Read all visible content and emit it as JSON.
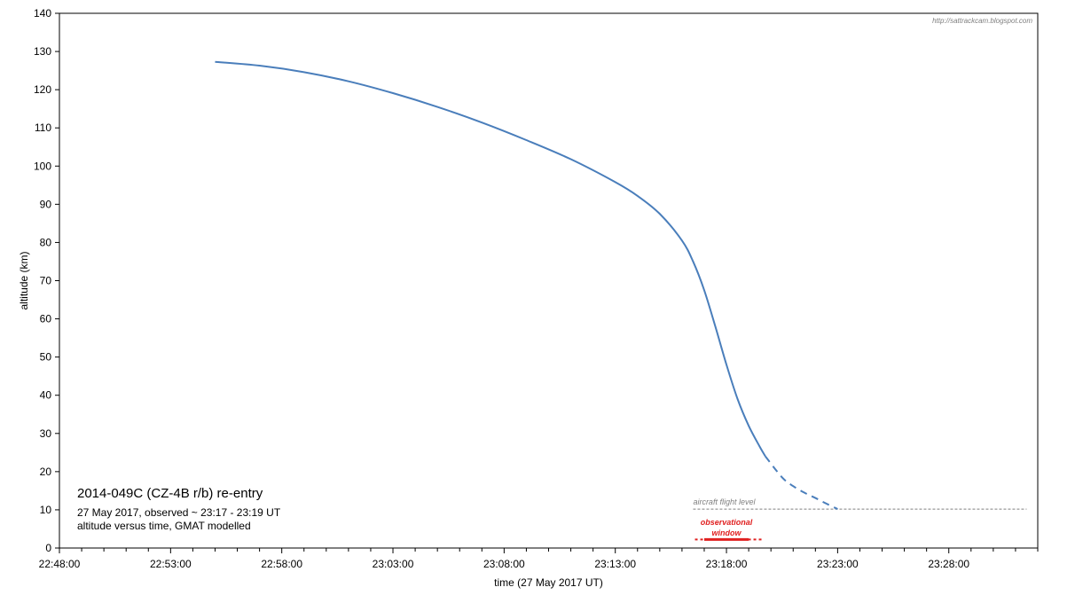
{
  "chart_data": {
    "type": "line",
    "title": "2014-049C  (CZ-4B r/b) re-entry",
    "subtitle_lines": [
      "27 May 2017,  observed ~ 23:17 - 23:19 UT",
      "altitude versus time, GMAT modelled"
    ],
    "xlabel": "time (27 May 2017 UT)",
    "ylabel": "altitude (km)",
    "watermark": "http://sattrackcam.blogspot.com",
    "xlim": [
      "22:48:00",
      "23:32:00"
    ],
    "ylim": [
      0,
      140
    ],
    "x_ticks": [
      "22:48:00",
      "22:53:00",
      "22:58:00",
      "23:03:00",
      "23:08:00",
      "23:13:00",
      "23:18:00",
      "23:23:00",
      "23:28:00"
    ],
    "y_ticks": [
      0,
      10,
      20,
      30,
      40,
      50,
      60,
      70,
      80,
      90,
      100,
      110,
      120,
      130,
      140
    ],
    "grid": false,
    "series": [
      {
        "style": "solid",
        "color": "#4a7ebb",
        "x": [
          "22:55:00",
          "22:57:00",
          "22:59:00",
          "23:01:00",
          "23:03:00",
          "23:05:00",
          "23:07:00",
          "23:09:00",
          "23:11:00",
          "23:13:00",
          "23:14:00",
          "23:15:00",
          "23:16:00",
          "23:16:30",
          "23:17:00",
          "23:17:30",
          "23:18:00",
          "23:18:30",
          "23:19:00",
          "23:19:30",
          "23:19:45"
        ],
        "y": [
          127.3,
          126.3,
          124.6,
          122.2,
          119.1,
          115.5,
          111.4,
          106.8,
          101.8,
          95.8,
          92.2,
          87.5,
          80.5,
          75.0,
          67.5,
          58.0,
          48.0,
          39.0,
          32.0,
          26.5,
          24.0
        ]
      },
      {
        "style": "dashed",
        "color": "#4a7ebb",
        "x": [
          "23:19:45",
          "23:20:30",
          "23:21:00",
          "23:21:30",
          "23:22:00",
          "23:22:30",
          "23:23:00"
        ],
        "y": [
          24.0,
          18.5,
          16.2,
          14.5,
          13.1,
          11.6,
          10.2
        ]
      }
    ],
    "annotations": [
      {
        "text": "aircraft flight level",
        "type": "hline",
        "y": 10.2,
        "x_from": "23:16:30",
        "x_to": "23:31:30",
        "color": "#808080",
        "style": "dashed"
      },
      {
        "text_lines": [
          "observational",
          "window"
        ],
        "type": "hspan",
        "y": 2,
        "x_from": "23:17:00",
        "x_to": "23:19:00",
        "ext_from": "23:16:35",
        "ext_to": "23:19:40",
        "color": "#e02020"
      }
    ]
  }
}
